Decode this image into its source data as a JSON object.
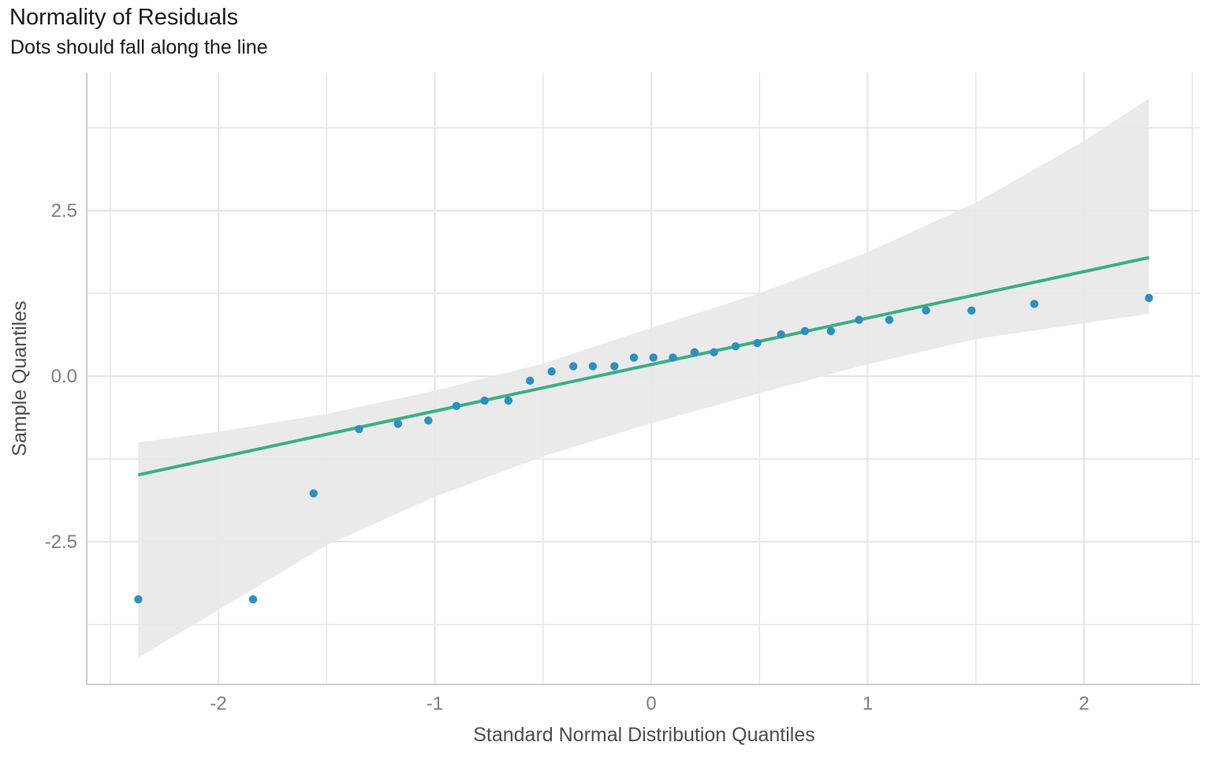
{
  "header": {
    "title": "Normality of Residuals",
    "subtitle": "Dots should fall along the line"
  },
  "chart_data": {
    "type": "scatter",
    "title": "Normality of Residuals",
    "subtitle": "Dots should fall along the line",
    "xlabel": "Standard Normal Distribution Quantiles",
    "ylabel": "Sample Quantiles",
    "xlim": [
      -2.5,
      2.5
    ],
    "ylim": [
      -4.6,
      4.6
    ],
    "x_ticks": [
      -2,
      -1,
      0,
      1,
      2
    ],
    "x_tick_labels": [
      "-2",
      "-1",
      "0",
      "1",
      "2"
    ],
    "y_ticks": [
      -2.5,
      0,
      2.5
    ],
    "y_tick_labels": [
      "-2.5",
      "0.0",
      "2.5"
    ],
    "grid": true,
    "colors": {
      "points": "#2c8fc4",
      "line": "#3aaf85",
      "band": "#e8e8e8",
      "grid": "#e6e6e6",
      "axis": "#cfcfcf"
    },
    "points": {
      "x": [
        -2.37,
        -1.84,
        -1.56,
        -1.35,
        -1.17,
        -1.03,
        -0.9,
        -0.77,
        -0.66,
        -0.56,
        -0.46,
        -0.36,
        -0.27,
        -0.17,
        -0.08,
        0.01,
        0.1,
        0.2,
        0.29,
        0.39,
        0.49,
        0.6,
        0.71,
        0.83,
        0.96,
        1.1,
        1.27,
        1.48,
        1.77,
        2.3
      ],
      "y": [
        -3.37,
        -3.37,
        -1.77,
        -0.8,
        -0.72,
        -0.67,
        -0.45,
        -0.37,
        -0.37,
        -0.07,
        0.07,
        0.15,
        0.15,
        0.15,
        0.28,
        0.28,
        0.28,
        0.36,
        0.36,
        0.45,
        0.5,
        0.63,
        0.68,
        0.68,
        0.85,
        0.85,
        0.99,
        0.99,
        1.09,
        1.18
      ]
    },
    "reference_line": {
      "x": [
        -2.37,
        2.3
      ],
      "y": [
        -1.49,
        1.79
      ]
    },
    "confidence_band": {
      "x": [
        -2.37,
        -2.0,
        -1.5,
        -1.0,
        -0.5,
        0.0,
        0.5,
        1.0,
        1.5,
        2.0,
        2.3
      ],
      "upper": [
        -1.0,
        -0.84,
        -0.57,
        -0.22,
        0.19,
        0.73,
        1.25,
        1.87,
        2.62,
        3.55,
        4.19
      ],
      "lower": [
        -4.25,
        -3.53,
        -2.55,
        -1.82,
        -1.21,
        -0.71,
        -0.26,
        0.18,
        0.56,
        0.8,
        0.94
      ]
    }
  }
}
